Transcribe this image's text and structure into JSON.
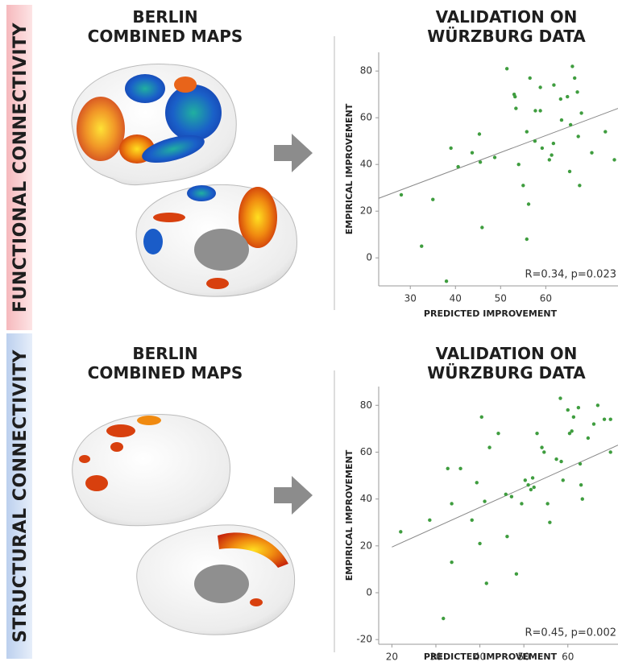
{
  "panels": [
    {
      "row_label": "FUNCTIONAL CONNECTIVITY",
      "maps_title": [
        "BERLIN",
        "COMBINED MAPS"
      ]
    },
    {
      "row_label": "STRUCTURAL CONNECTIVITY",
      "maps_title": [
        "BERLIN",
        "COMBINED MAPS"
      ]
    }
  ],
  "chart_data": [
    {
      "type": "scatter",
      "title": [
        "VALIDATION ON",
        "WÜRZBURG DATA"
      ],
      "x_label": "PREDICTED IMPROVEMENT",
      "y_label": "EMPIRICAL IMPROVEMENT",
      "annotation": "R=0.34, p=0.023",
      "color": "#3f9d3f",
      "xlim": [
        23,
        76
      ],
      "ylim": [
        -12,
        88
      ],
      "xticks": [
        30,
        40,
        50,
        60
      ],
      "yticks": [
        0,
        20,
        40,
        60,
        80
      ],
      "x": [
        28,
        32.5,
        35,
        38,
        39,
        40.6,
        43.7,
        45.3,
        45.5,
        45.9,
        48.7,
        51.4,
        53,
        53.2,
        53.4,
        54,
        55,
        55.8,
        56.2,
        55.8,
        56.5,
        57.6,
        57.7,
        58.8,
        58.8,
        59.2,
        60.8,
        61.3,
        61.8,
        61.7,
        63.3,
        63.5,
        64.8,
        65.3,
        65.5,
        65.9,
        66.4,
        67,
        67.2,
        67.5,
        67.9,
        70.2,
        73.2,
        75.2
      ],
      "values": [
        27,
        5,
        25,
        -10,
        47,
        39,
        45,
        53,
        41,
        13,
        43,
        81,
        70,
        69,
        64,
        40,
        31,
        54,
        23,
        8,
        77,
        50,
        63,
        73,
        63,
        47,
        42,
        44,
        74,
        49,
        68,
        59,
        69,
        37,
        57,
        82,
        77,
        71,
        52,
        31,
        62,
        45,
        54,
        42
      ],
      "trend_line": {
        "x": [
          23,
          76
        ],
        "y": [
          25.5,
          64
        ]
      }
    },
    {
      "type": "scatter",
      "title": [
        "VALIDATION ON",
        "WÜRZBURG DATA"
      ],
      "x_label": "PREDICTED IMPROVEMENT",
      "y_label": "EMPIRICAL IMPROVEMENT",
      "annotation": "R=0.45, p=0.002",
      "color": "#3f9d3f",
      "xlim": [
        17,
        71.4
      ],
      "ylim": [
        -22,
        88
      ],
      "xticks": [
        20,
        30,
        40,
        50,
        60
      ],
      "yticks": [
        -20,
        0,
        20,
        40,
        60,
        80
      ],
      "x": [
        22,
        28.6,
        31.7,
        32.7,
        33.6,
        33.6,
        35.6,
        38.2,
        39.3,
        40,
        40.4,
        41.1,
        41.5,
        42.2,
        44.2,
        45.9,
        46.2,
        47.2,
        48.3,
        49.5,
        50.3,
        51,
        51.6,
        52,
        52.3,
        53,
        54.1,
        54.6,
        55.4,
        55.9,
        57.4,
        58.3,
        58.5,
        58.9,
        60,
        60.4,
        60.9,
        61.3,
        62.4,
        62.8,
        63,
        63.3,
        64.6,
        65.9,
        66.8,
        68.3,
        69.7,
        69.7
      ],
      "values": [
        26,
        31,
        -11,
        53,
        38,
        13,
        53,
        31,
        47,
        21,
        75,
        39,
        4,
        62,
        68,
        42,
        24,
        41,
        8,
        38,
        48,
        46,
        44,
        49,
        45,
        68,
        62,
        60,
        38,
        30,
        57,
        83,
        56,
        48,
        78,
        68,
        69,
        75,
        79,
        55,
        46,
        40,
        66,
        72,
        80,
        74,
        60,
        74
      ],
      "trend_line": {
        "x": [
          20,
          71.4
        ],
        "y": [
          19.5,
          63
        ]
      }
    }
  ]
}
